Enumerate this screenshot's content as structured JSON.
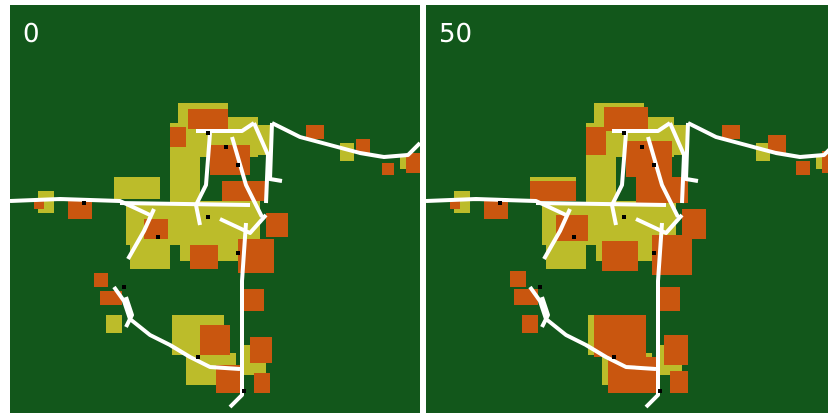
{
  "panels": [
    {
      "label": "0"
    },
    {
      "label": "50"
    }
  ],
  "colors": {
    "background": "#12571b",
    "roads": "#ffffff",
    "patch_olive": "#bcbc2a",
    "patch_orange": "#c9560f",
    "points": "#000000"
  }
}
